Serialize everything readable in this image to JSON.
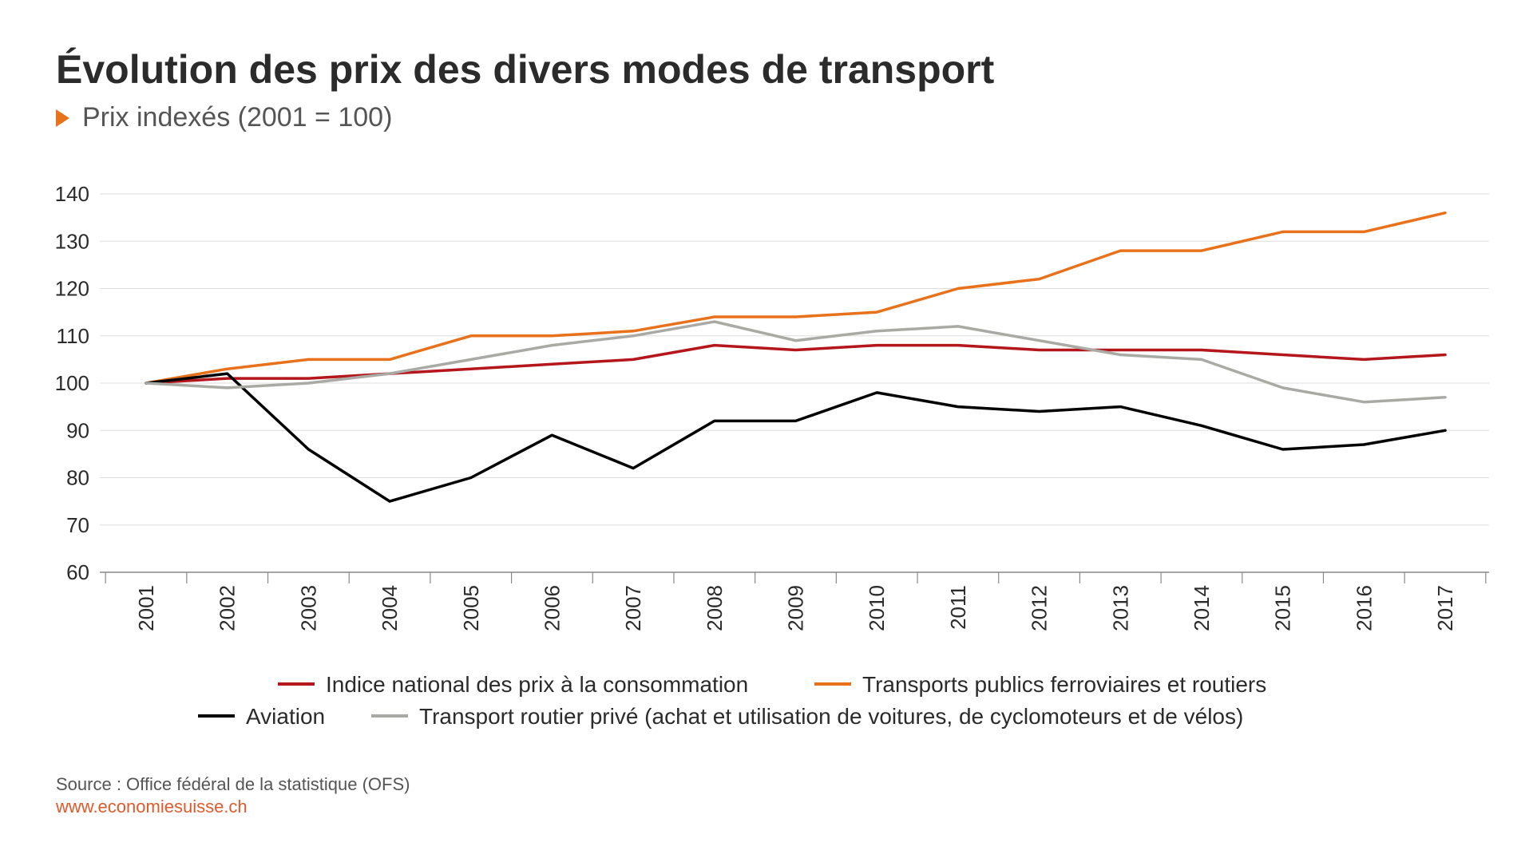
{
  "header": {
    "title": "Évolution des prix des divers modes de transport",
    "subtitle": "Prix indexés (2001 = 100)"
  },
  "footer": {
    "source": "Source : Office fédéral de la statistique (OFS)",
    "website": "www.economiesuisse.ch"
  },
  "colors": {
    "accent": "#e8711c",
    "grid": "#dddddd",
    "axis": "#888888",
    "text": "#2b2b2b"
  },
  "chart_data": {
    "type": "line",
    "title": "Évolution des prix des divers modes de transport",
    "subtitle": "Prix indexés (2001 = 100)",
    "x": [
      "2001",
      "2002",
      "2003",
      "2004",
      "2005",
      "2006",
      "2007",
      "2008",
      "2009",
      "2010",
      "2011",
      "2012",
      "2013",
      "2014",
      "2015",
      "2016",
      "2017"
    ],
    "ylim": [
      60,
      140
    ],
    "yticks": [
      60,
      70,
      80,
      90,
      100,
      110,
      120,
      130,
      140
    ],
    "grid": true,
    "legend_position": "bottom",
    "series": [
      {
        "name": "Indice national des prix à la consommation",
        "color": "#b5161c",
        "values": [
          100,
          101,
          101,
          102,
          103,
          104,
          105,
          108,
          107,
          108,
          108,
          107,
          107,
          107,
          106,
          105,
          106
        ]
      },
      {
        "name": "Transports publics ferroviaires et routiers",
        "color": "#e8711c",
        "values": [
          100,
          103,
          105,
          105,
          110,
          110,
          111,
          114,
          114,
          115,
          120,
          122,
          128,
          128,
          132,
          132,
          136
        ]
      },
      {
        "name": "Aviation",
        "color": "#000000",
        "values": [
          100,
          102,
          86,
          75,
          80,
          89,
          82,
          92,
          92,
          98,
          95,
          94,
          95,
          91,
          86,
          87,
          90
        ]
      },
      {
        "name": "Transport routier privé (achat et utilisation de voitures, de cyclomoteurs et de vélos)",
        "color": "#aaaaa5",
        "values": [
          100,
          99,
          100,
          102,
          105,
          108,
          110,
          113,
          109,
          111,
          112,
          109,
          106,
          105,
          99,
          96,
          97
        ]
      }
    ]
  }
}
